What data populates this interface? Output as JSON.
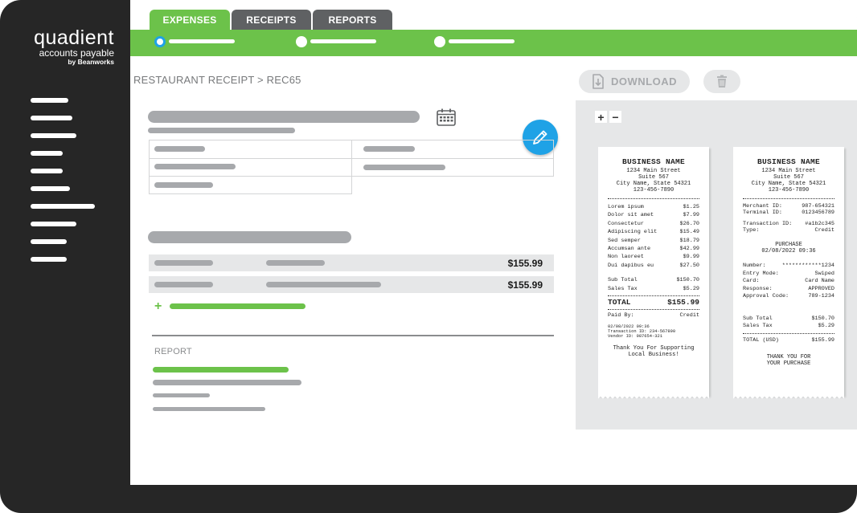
{
  "brand": {
    "name": "quadient",
    "sub": "accounts payable",
    "by": "by Beanworks"
  },
  "tabs": [
    {
      "label": "EXPENSES",
      "active": true
    },
    {
      "label": "RECEIPTS",
      "active": false
    },
    {
      "label": "REPORTS",
      "active": false
    }
  ],
  "breadcrumb": "RESTAURANT RECEIPT > REC65",
  "line_items": [
    {
      "amount": "$155.99"
    },
    {
      "amount": "$155.99"
    }
  ],
  "report_label": "REPORT",
  "toolbar": {
    "download_label": "DOWNLOAD"
  },
  "viewer": {
    "zoom_in": "+",
    "zoom_out": "−"
  },
  "receipt_left": {
    "business_name": "BUSINESS NAME",
    "address": [
      "1234 Main Street",
      "Suite 567",
      "City Name, State 54321",
      "123-456-7890"
    ],
    "items": [
      {
        "name": "Lorem ipsum",
        "price": "$1.25"
      },
      {
        "name": "Dolor sit amet",
        "price": "$7.99"
      },
      {
        "name": "Consectetur",
        "price": "$26.70"
      },
      {
        "name": "Adipiscing elit",
        "price": "$15.49"
      },
      {
        "name": "Sed semper",
        "price": "$18.79"
      },
      {
        "name": "Accumsan ante",
        "price": "$42.99"
      },
      {
        "name": "Non laoreet",
        "price": "$9.99"
      },
      {
        "name": "Dui dapibus eu",
        "price": "$27.50"
      }
    ],
    "subtotal_label": "Sub Total",
    "subtotal": "$150.70",
    "tax_label": "Sales Tax",
    "tax": "$5.29",
    "total_label": "TOTAL",
    "total": "$155.99",
    "paid_by_label": "Paid By:",
    "paid_by": "Credit",
    "meta": [
      "02/08/2022 09:36",
      "Transaction ID: 234-567890",
      "Vendor ID: 987654-321"
    ],
    "footer": [
      "Thank You For Supporting",
      "Local Business!"
    ]
  },
  "receipt_right": {
    "business_name": "BUSINESS NAME",
    "address": [
      "1234 Main Street",
      "Suite 567",
      "City Name, State 54321",
      "123-456-7890"
    ],
    "merchant": [
      {
        "k": "Merchant ID:",
        "v": "987-654321"
      },
      {
        "k": "Terminal ID:",
        "v": "0123456789"
      }
    ],
    "transaction": [
      {
        "k": "Transaction ID:",
        "v": "#a1b2c345"
      },
      {
        "k": "Type:",
        "v": "Credit"
      }
    ],
    "purchase_title": "PURCHASE",
    "purchase_date": "02/08/2022 09:36",
    "card": [
      {
        "k": "Number:",
        "v": "************1234"
      },
      {
        "k": "Entry Mode:",
        "v": "Swiped"
      },
      {
        "k": "Card:",
        "v": "Card Name"
      },
      {
        "k": "Response:",
        "v": "APPROVED"
      },
      {
        "k": "Approval Code:",
        "v": "789-1234"
      }
    ],
    "subtotal_label": "Sub Total",
    "subtotal": "$150.70",
    "tax_label": "Sales Tax",
    "tax": "$5.29",
    "total_label": "TOTAL (USD)",
    "total": "$155.99",
    "footer": [
      "THANK YOU FOR",
      "YOUR PURCHASE"
    ]
  },
  "colors": {
    "accent_green": "#6cc24a",
    "accent_blue": "#1fa2e6",
    "sidebar": "#262626",
    "tab_inactive": "#5f6163"
  },
  "icons": {
    "calendar": "calendar-icon",
    "edit": "pencil-icon",
    "download": "document-download-icon",
    "delete": "trash-icon",
    "add": "plus-icon"
  }
}
